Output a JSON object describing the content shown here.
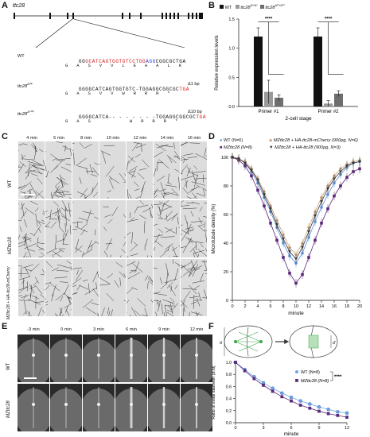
{
  "panels": {
    "A": "A",
    "B": "B",
    "C": "C",
    "D": "D",
    "E": "E",
    "F": "F"
  },
  "panelA": {
    "gene_label": "ttc28",
    "rows": [
      {
        "name": "WT",
        "seq_pre": "GG",
        "seq_red": "GCATCAGTGGTGTCCTGG",
        "seq_blue": "AGG",
        "seq_post": "CGGCGCTGA",
        "aa": "G  A  S  V  V  L  E  A  A  L  K",
        "delta": ""
      },
      {
        "name": "ttc28Δ ᵃᵈ2",
        "seq_pre": "GGGGCATCAGTGGTGTC-",
        "seq_red": "",
        "seq_blue": "",
        "seq_post": "TGGAGGCGGCGC",
        "seq_stop": "TGA",
        "aa": "G  A  S  V  V  W  R  R  R  *",
        "delta": "Δ1 bp"
      },
      {
        "name": "ttc28",
        "seq_pre": "GGGGCATCA-",
        "seq_red": "",
        "seq_blue": "",
        "seq_post": "- - - - - - -TGGAGGCGGCGC",
        "seq_stop": "TGA",
        "aa": "G  A  S          W  R  R  R  *",
        "delta": "Δ10 bp"
      }
    ],
    "row_names": [
      "WT",
      "ttc28",
      "ttc28"
    ],
    "row_sup": [
      "",
      "Δ¹ᵇᵖ",
      "Δ¹⁰ᵇᵖ"
    ]
  },
  "panelB": {
    "legend": [
      "WT",
      "ttc28",
      "ttc28"
    ],
    "legend_sup": [
      "",
      "Δ¹/Δ¹",
      "Δ¹⁰/Δ¹⁰"
    ],
    "ylabel": "Relative expression levels",
    "xlabel": "2-cell stage",
    "sig": [
      "****",
      "****"
    ]
  },
  "panelC": {
    "times": [
      "4 min",
      "6 min",
      "8 min",
      "10 min",
      "12 min",
      "14 min",
      "16 min"
    ],
    "rows": [
      "WT",
      "MZttc28",
      "MZttc28 + HA-ttc28-mCherry"
    ]
  },
  "panelD": {
    "legend": [
      "WT (N=6)",
      "MZttc28 (N=8)",
      "MZttc28 + HA-ttc28-mCherry (900pg, N=6)",
      "MZttc28 + HA-ttc28 (900pg, N=3)"
    ],
    "ylabel": "Microtubule density (%)",
    "xlabel": "minute"
  },
  "panelE": {
    "times": [
      "-3 min",
      "0 min",
      "3 min",
      "6 min",
      "9 min",
      "12 min"
    ],
    "rows": [
      "WT",
      "MZttc28"
    ]
  },
  "panelF": {
    "legend": [
      "WT (N=8)",
      "MZttc28 (N=8)"
    ],
    "sig": "****",
    "ylabel": "Ratio of initial diameter (d'/d)",
    "xlabel": "minute",
    "d": "d",
    "dprime": "d'"
  },
  "chart_data": [
    {
      "type": "bar",
      "panel": "B",
      "categories": [
        "Primer #1",
        "Primer #2"
      ],
      "series": [
        {
          "name": "WT",
          "values": [
            1.2,
            1.2
          ],
          "color": "#111111"
        },
        {
          "name": "ttc28 Δ1/Δ1",
          "values": [
            0.25,
            0.05
          ],
          "color": "#9a9a9a"
        },
        {
          "name": "ttc28 Δ10/Δ10",
          "values": [
            0.15,
            0.22
          ],
          "color": "#6e6e6e"
        }
      ],
      "errors": [
        [
          0.15,
          0.15
        ],
        [
          0.2,
          0.05
        ],
        [
          0.05,
          0.05
        ]
      ],
      "ylim": [
        0,
        1.5
      ],
      "yticks": [
        0.0,
        0.5,
        1.0,
        1.5
      ],
      "ylabel": "Relative expression levels",
      "xlabel": "2-cell stage"
    },
    {
      "type": "line",
      "panel": "D",
      "x": [
        0,
        1,
        2,
        3,
        4,
        5,
        6,
        7,
        8,
        9,
        10,
        11,
        12,
        13,
        14,
        15,
        16,
        17,
        18,
        19,
        20
      ],
      "series": [
        {
          "name": "WT (N=6)",
          "values": [
            100,
            99,
            96,
            90,
            82,
            72,
            62,
            51,
            40,
            31,
            26,
            33,
            44,
            55,
            65,
            74,
            82,
            88,
            93,
            96,
            97
          ],
          "color": "#5b8fd6"
        },
        {
          "name": "MZttc28 (N=8)",
          "values": [
            100,
            98,
            94,
            87,
            77,
            66,
            54,
            42,
            30,
            19,
            12,
            18,
            30,
            42,
            54,
            64,
            73,
            80,
            86,
            90,
            92
          ],
          "color": "#5a2a7a"
        },
        {
          "name": "MZttc28 + HA-ttc28-mCherry (900pg, N=6)",
          "values": [
            100,
            99,
            97,
            92,
            85,
            76,
            66,
            56,
            46,
            37,
            32,
            40,
            51,
            62,
            72,
            80,
            87,
            92,
            95,
            97,
            98
          ],
          "color": "#c9a27a"
        },
        {
          "name": "MZttc28 + HA-ttc28 (900pg, N=3)",
          "values": [
            100,
            99,
            96,
            91,
            84,
            74,
            64,
            53,
            43,
            34,
            29,
            37,
            48,
            59,
            69,
            78,
            85,
            90,
            94,
            96,
            97
          ],
          "color": "#333333"
        }
      ],
      "ylim": [
        0,
        100
      ],
      "yticks": [
        0,
        20,
        40,
        60,
        80,
        100
      ],
      "xticks": [
        0,
        2,
        4,
        6,
        8,
        10,
        12,
        14,
        16,
        18,
        20
      ],
      "ylabel": "Microtubule density (%)",
      "xlabel": "minute"
    },
    {
      "type": "line",
      "panel": "F",
      "x": [
        0,
        1,
        2,
        3,
        4,
        5,
        6,
        7,
        8,
        9,
        10,
        11,
        12
      ],
      "series": [
        {
          "name": "WT (N=8)",
          "values": [
            1.0,
            0.88,
            0.76,
            0.66,
            0.57,
            0.49,
            0.42,
            0.36,
            0.31,
            0.26,
            0.22,
            0.18,
            0.16
          ],
          "color": "#6fa3e8"
        },
        {
          "name": "MZttc28 (N=8)",
          "values": [
            1.0,
            0.86,
            0.73,
            0.62,
            0.52,
            0.43,
            0.36,
            0.29,
            0.24,
            0.19,
            0.15,
            0.12,
            0.09
          ],
          "color": "#5a2a7a"
        }
      ],
      "ylim": [
        0,
        1.0
      ],
      "yticks": [
        0.0,
        0.2,
        0.4,
        0.6,
        0.8,
        1.0
      ],
      "xticks": [
        0,
        3,
        6,
        9,
        12
      ],
      "ylabel": "Ratio of initial diameter (d'/d)",
      "xlabel": "minute"
    }
  ]
}
